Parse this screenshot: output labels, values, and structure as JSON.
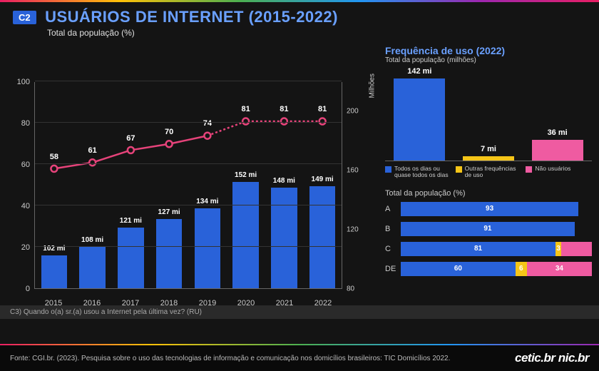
{
  "header": {
    "badge": "C2",
    "title": "USUÁRIOS DE INTERNET (2015-2022)",
    "subtitle": "Total da população (%)"
  },
  "colors": {
    "bar": "#2962d9",
    "line": "#e6437a",
    "yellow": "#f5c518",
    "pink": "#ef5ba1",
    "bg": "#141414",
    "text_accent": "#6aa0ff"
  },
  "main_chart": {
    "type": "bar+line",
    "y_left": {
      "min": 0,
      "max": 100,
      "step": 20,
      "label": ""
    },
    "y_right": {
      "min": 80,
      "max": 220,
      "step": 40,
      "label": "Milhões"
    },
    "years": [
      "2015",
      "2016",
      "2017",
      "2018",
      "2019",
      "2020",
      "2021",
      "2022"
    ],
    "bar_values_mi": [
      102,
      108,
      121,
      127,
      134,
      152,
      148,
      149
    ],
    "bar_labels": [
      "102 mi",
      "108 mi",
      "121 mi",
      "127 mi",
      "134 mi",
      "152 mi",
      "148 mi",
      "149 mi"
    ],
    "line_values_pct": [
      58,
      61,
      67,
      70,
      74,
      81,
      81,
      81
    ],
    "line_labels": [
      "58",
      "61",
      "67",
      "70",
      "74",
      "81",
      "81",
      "81"
    ],
    "dotted_from_index": 4
  },
  "freq": {
    "title": "Frequência de uso (2022)",
    "subtitle": "Total da população (milhões)",
    "max": 160,
    "bars": [
      {
        "label": "142 mi",
        "value": 142,
        "color": "#2962d9"
      },
      {
        "label": "7 mi",
        "value": 7,
        "color": "#f5c518"
      },
      {
        "label": "36 mi",
        "value": 36,
        "color": "#ef5ba1"
      }
    ],
    "legend": [
      {
        "color": "#2962d9",
        "text": "Todos os dias ou quase todos os dias"
      },
      {
        "color": "#f5c518",
        "text": "Outras frequências de uso"
      },
      {
        "color": "#ef5ba1",
        "text": "Não usuários"
      }
    ]
  },
  "classes": {
    "title": "Total da população (%)",
    "rows": [
      {
        "label": "A",
        "segs": [
          {
            "v": 93,
            "c": "#2962d9",
            "t": "93"
          }
        ]
      },
      {
        "label": "B",
        "segs": [
          {
            "v": 91,
            "c": "#2962d9",
            "t": "91"
          }
        ]
      },
      {
        "label": "C",
        "segs": [
          {
            "v": 81,
            "c": "#2962d9",
            "t": "81"
          },
          {
            "v": 3,
            "c": "#f5c518",
            "t": "3"
          },
          {
            "v": 16,
            "c": "#ef5ba1",
            "t": ""
          }
        ]
      },
      {
        "label": "DE",
        "segs": [
          {
            "v": 60,
            "c": "#2962d9",
            "t": "60"
          },
          {
            "v": 6,
            "c": "#f5c518",
            "t": "6"
          },
          {
            "v": 34,
            "c": "#ef5ba1",
            "t": "34"
          }
        ]
      }
    ]
  },
  "footnote": "C3) Quando o(a) sr.(a) usou a Internet pela última vez? (RU)",
  "source": "Fonte: CGI.br. (2023). Pesquisa sobre o uso das tecnologias de informação e comunicação nos domicílios brasileiros: TIC Domicílios 2022.",
  "logos": "cetic.br  nic.br"
}
